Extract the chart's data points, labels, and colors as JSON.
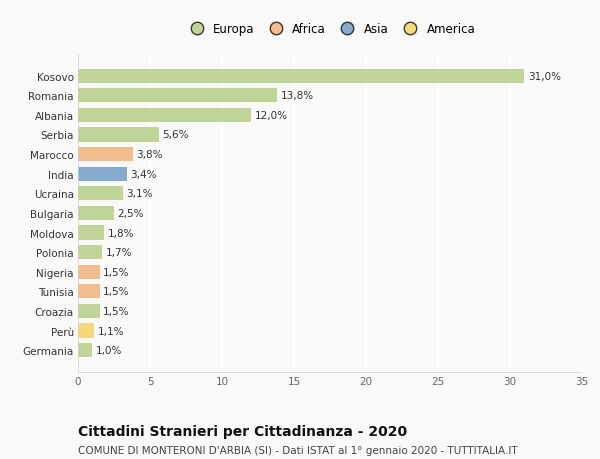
{
  "categories": [
    "Germania",
    "Perù",
    "Croazia",
    "Tunisia",
    "Nigeria",
    "Polonia",
    "Moldova",
    "Bulgaria",
    "Ucraina",
    "India",
    "Marocco",
    "Serbia",
    "Albania",
    "Romania",
    "Kosovo"
  ],
  "values": [
    1.0,
    1.1,
    1.5,
    1.5,
    1.5,
    1.7,
    1.8,
    2.5,
    3.1,
    3.4,
    3.8,
    5.6,
    12.0,
    13.8,
    31.0
  ],
  "labels": [
    "1,0%",
    "1,1%",
    "1,5%",
    "1,5%",
    "1,5%",
    "1,7%",
    "1,8%",
    "2,5%",
    "3,1%",
    "3,4%",
    "3,8%",
    "5,6%",
    "12,0%",
    "13,8%",
    "31,0%"
  ],
  "continents": [
    "Europa",
    "America",
    "Europa",
    "Africa",
    "Africa",
    "Europa",
    "Europa",
    "Europa",
    "Europa",
    "Asia",
    "Africa",
    "Europa",
    "Europa",
    "Europa",
    "Europa"
  ],
  "continent_colors": {
    "Europa": "#adc878",
    "Africa": "#f0a868",
    "Asia": "#6090c0",
    "America": "#f5cc50"
  },
  "legend_order": [
    "Europa",
    "Africa",
    "Asia",
    "America"
  ],
  "xlim": [
    0,
    35
  ],
  "xticks": [
    0,
    5,
    10,
    15,
    20,
    25,
    30,
    35
  ],
  "title": "Cittadini Stranieri per Cittadinanza - 2020",
  "subtitle": "COMUNE DI MONTERONI D'ARBIA (SI) - Dati ISTAT al 1° gennaio 2020 - TUTTITALIA.IT",
  "background_color": "#f9f9f9",
  "grid_color": "#ffffff",
  "bar_alpha": 0.75,
  "bar_height": 0.72,
  "title_fontsize": 10,
  "subtitle_fontsize": 7.5,
  "label_fontsize": 7.5,
  "tick_fontsize": 7.5,
  "legend_fontsize": 8.5
}
